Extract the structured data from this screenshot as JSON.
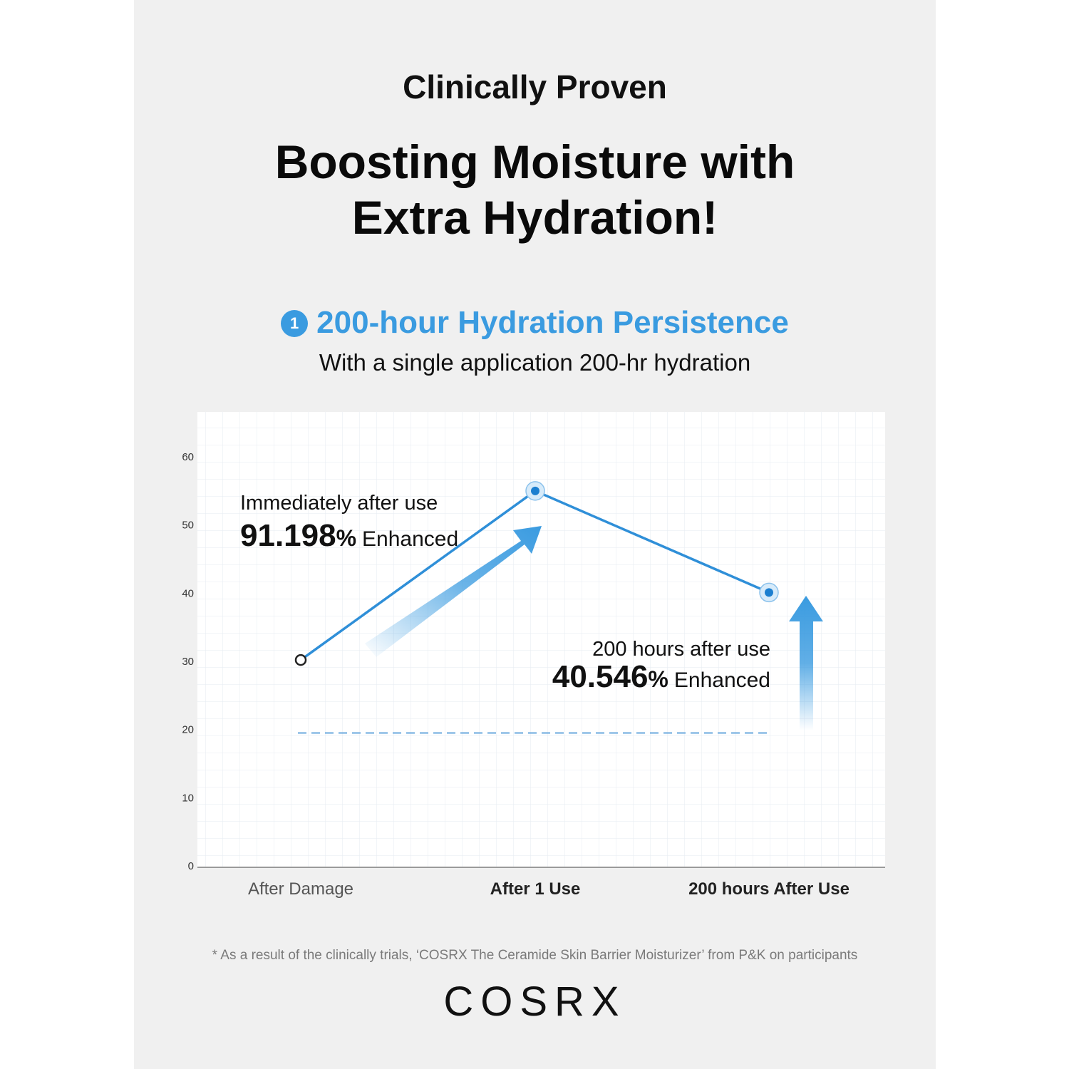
{
  "header": {
    "kicker": "Clinically Proven",
    "headline_line1": "Boosting Moisture with",
    "headline_line2": "Extra Hydration!"
  },
  "section": {
    "number": "1",
    "title": "200-hour Hydration Persistence",
    "subtitle": "With a single application 200-hr hydration"
  },
  "chart_data": {
    "type": "line",
    "categories": [
      "After Damage",
      "After 1 Use",
      "200 hours After Use"
    ],
    "values": [
      30.2,
      55,
      40.1
    ],
    "ylim": [
      0,
      60
    ],
    "yticks": [
      0,
      10,
      20,
      30,
      40,
      50,
      60
    ],
    "grid": true,
    "reference_line": 19.5,
    "annotations": [
      {
        "label": "Immediately after use",
        "value": "91.198",
        "unit": "%",
        "suffix": "Enhanced"
      },
      {
        "label": "200 hours after use",
        "value": "40.546",
        "unit": "%",
        "suffix": "Enhanced"
      }
    ],
    "colors": {
      "line": "#2f8fd8",
      "accent": "#3a9be0",
      "grid": "#e8edf3",
      "reference": "#6aa8de"
    }
  },
  "footnote": "* As a result of the clinically trials, ‘COSRX The Ceramide Skin Barrier Moisturizer’ from P&K on participants",
  "brand": {
    "logo": "COSRX"
  }
}
